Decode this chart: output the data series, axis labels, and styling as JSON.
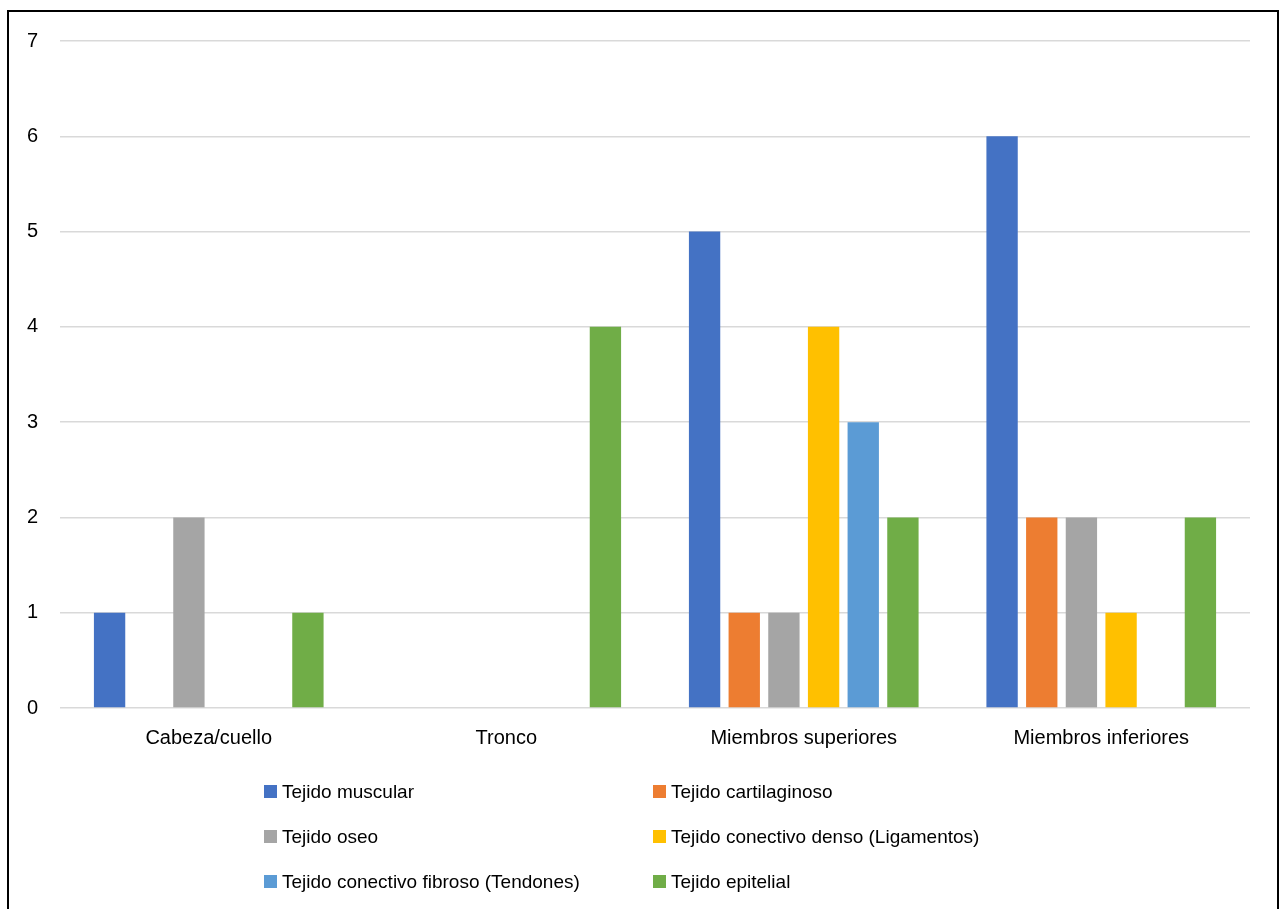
{
  "chart_data": {
    "type": "bar",
    "categories": [
      "Cabeza/cuello",
      "Tronco",
      "Miembros superiores",
      "Miembros inferiores"
    ],
    "series": [
      {
        "name": "Tejido muscular",
        "color": "#4472c4",
        "values": [
          1,
          null,
          5,
          6
        ]
      },
      {
        "name": "Tejido cartilaginoso",
        "color": "#ed7d31",
        "values": [
          null,
          null,
          1,
          2
        ]
      },
      {
        "name": "Tejido oseo",
        "color": "#a5a5a5",
        "values": [
          2,
          null,
          1,
          2
        ]
      },
      {
        "name": "Tejido conectivo denso (Ligamentos)",
        "color": "#ffc000",
        "values": [
          null,
          null,
          4,
          1
        ]
      },
      {
        "name": "Tejido conectivo fibroso (Tendones)",
        "color": "#5b9bd5",
        "values": [
          null,
          null,
          3,
          null
        ]
      },
      {
        "name": "Tejido epitelial",
        "color": "#70ad47",
        "values": [
          1,
          4,
          2,
          2
        ]
      }
    ],
    "ylim": [
      0,
      7
    ],
    "yticks": [
      0,
      1,
      2,
      3,
      4,
      5,
      6,
      7
    ],
    "grid": "y",
    "legend": "bottom"
  }
}
